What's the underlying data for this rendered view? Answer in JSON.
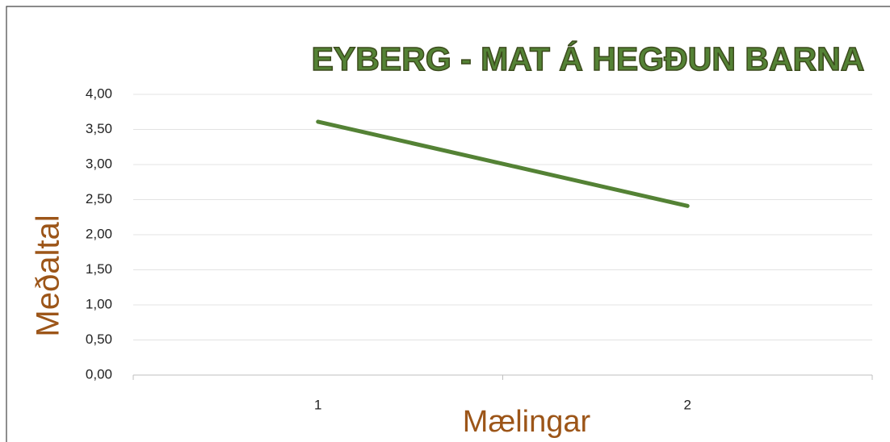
{
  "chart_data": {
    "type": "line",
    "title": "EYBERG - MAT Á HEGÐUN BARNA",
    "x_label": "Mælingar",
    "y_label": "Meðaltal",
    "categories": [
      "1",
      "2"
    ],
    "values": [
      3.61,
      2.41
    ],
    "color": "#548235",
    "ylim": [
      0,
      4
    ],
    "yticks": [
      {
        "value": 0,
        "label": "0,00"
      },
      {
        "value": 0.5,
        "label": "0,50"
      },
      {
        "value": 1,
        "label": "1,00"
      },
      {
        "value": 1.5,
        "label": "1,50"
      },
      {
        "value": 2,
        "label": "2,00"
      },
      {
        "value": 2.5,
        "label": "2,50"
      },
      {
        "value": 3,
        "label": "3,00"
      },
      {
        "value": 3.5,
        "label": "3,50"
      },
      {
        "value": 4,
        "label": "4,00"
      }
    ],
    "grid": true
  }
}
